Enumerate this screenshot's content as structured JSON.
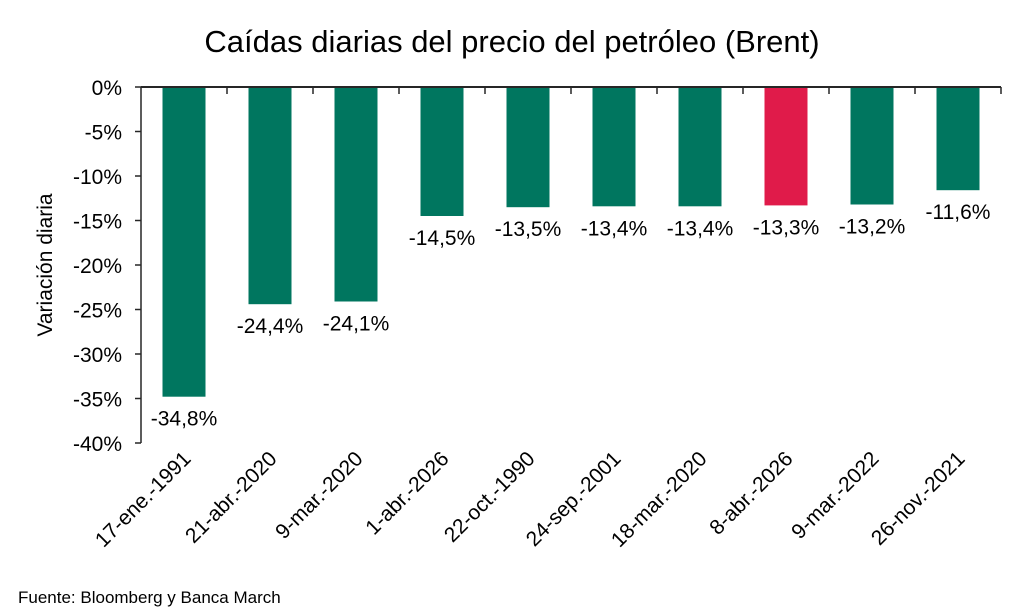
{
  "chart_data": {
    "type": "bar",
    "title": "Caídas diarias del precio del petróleo (Brent)",
    "xlabel": "",
    "ylabel": "Variación diaria",
    "ylim": [
      -40,
      0
    ],
    "yticks": [
      0,
      -5,
      -10,
      -15,
      -20,
      -25,
      -30,
      -35,
      -40
    ],
    "ytick_labels": [
      "0%",
      "-5%",
      "-10%",
      "-15%",
      "-20%",
      "-25%",
      "-30%",
      "-35%",
      "-40%"
    ],
    "grid": false,
    "categories": [
      "17-ene.-1991",
      "21-abr.-2020",
      "9-mar.-2020",
      "1-abr.-2026",
      "22-oct.-1990",
      "24-sep.-2001",
      "18-mar.-2020",
      "8-abr.-2026",
      "9-mar.-2022",
      "26-nov.-2021"
    ],
    "values": [
      -34.8,
      -24.4,
      -24.1,
      -14.5,
      -13.5,
      -13.4,
      -13.4,
      -13.3,
      -13.2,
      -11.6
    ],
    "data_labels": [
      "-34,8%",
      "-24,4%",
      "-24,1%",
      "-14,5%",
      "-13,5%",
      "-13,4%",
      "-13,4%",
      "-13,3%",
      "-13,2%",
      "-11,6%"
    ],
    "highlight_index": 7,
    "colors": {
      "default": "#00765f",
      "highlight": "#e01b4a",
      "axis": "#262626"
    }
  },
  "footer": {
    "source": "Fuente: Bloomberg y Banca March"
  }
}
